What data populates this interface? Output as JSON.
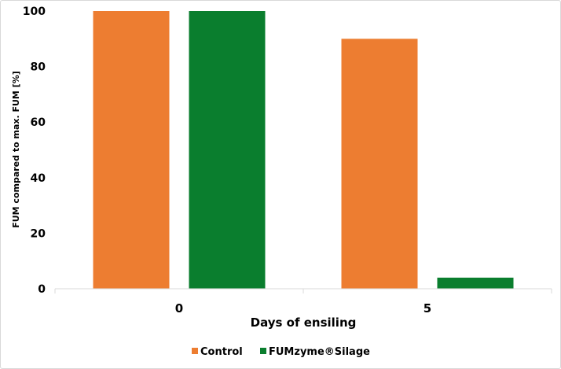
{
  "chart_data": {
    "type": "bar",
    "categories": [
      "0",
      "5"
    ],
    "series": [
      {
        "name": "Control",
        "values": [
          100,
          90
        ],
        "color": "#ed7d31"
      },
      {
        "name": "FUMzyme®Silage",
        "values": [
          100,
          4
        ],
        "color": "#0a7e2e"
      }
    ],
    "xlabel": "Days of ensiling",
    "ylabel": "FUM compared to max. FUM [%]",
    "ylim": [
      0,
      100
    ],
    "yticks": [
      0,
      20,
      40,
      60,
      80,
      100
    ],
    "grid": false,
    "legend_position": "bottom"
  }
}
